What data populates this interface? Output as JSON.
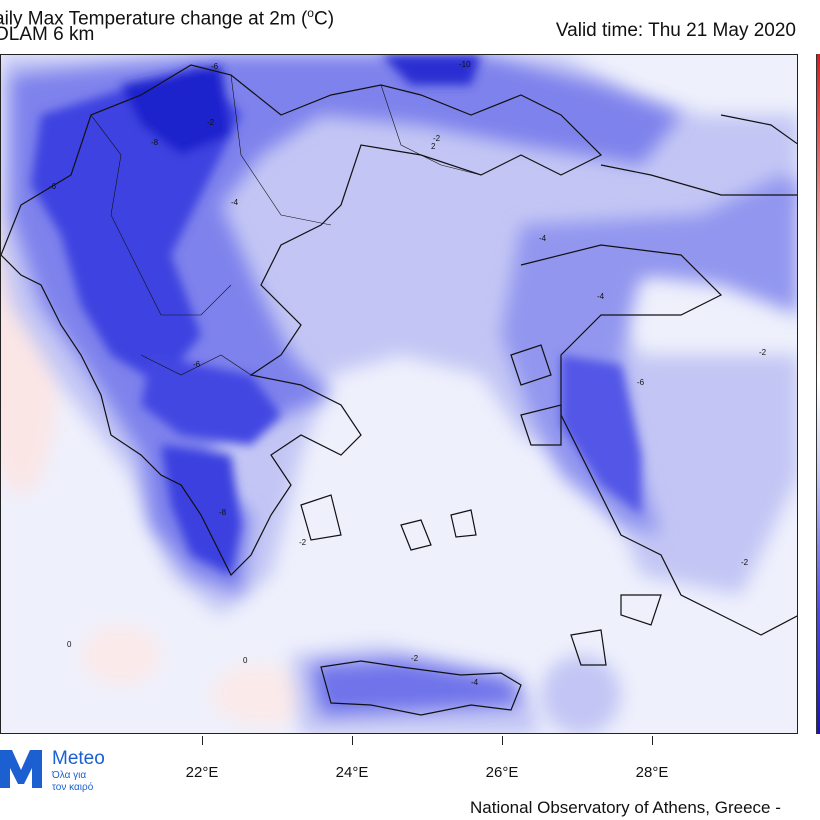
{
  "header": {
    "title_line1": "aily Max Temperature change at 2m (",
    "title_unit_sup": "o",
    "title_unit_end": "C)",
    "title_line2": "OLAM 6 km",
    "valid_time": "Valid time: Thu 21 May 2020"
  },
  "axis": {
    "lon_ticks": [
      "22°E",
      "24°E",
      "26°E",
      "28°E"
    ]
  },
  "logo": {
    "name": "Meteo",
    "tagline_line1": "Όλα για",
    "tagline_line2": "τον καιρό"
  },
  "credit": "National Observatory of Athens, Greece -",
  "colors": {
    "ocean_background": "#eef0fc",
    "cooling_light": "#aeb3f2",
    "cooling_medium": "#6f73ea",
    "cooling_strong": "#3a3ee0",
    "cooling_deep": "#1a1fc9",
    "warming_light": "#fbe9e9",
    "coastline": "#111111",
    "brand_blue": "#1b5fd1"
  },
  "contour_labels": [
    "-2",
    "-4",
    "-6",
    "-8",
    "-10",
    "0",
    "2"
  ]
}
